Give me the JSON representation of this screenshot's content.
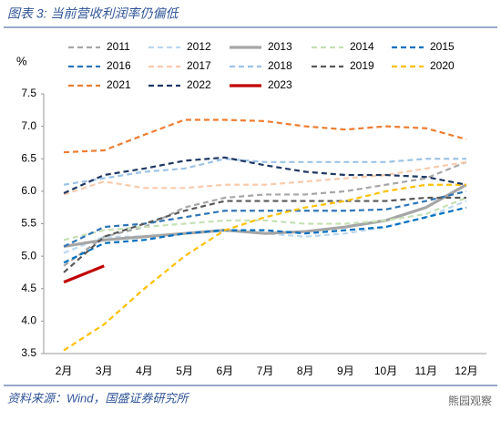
{
  "chart_data": {
    "type": "line",
    "title": "图表 3:  当前营收利润率仍偏低",
    "source": "资料来源：Wind，国盛证券研究所",
    "watermark": "熊园观察",
    "y_label": "%",
    "categories": [
      "2月",
      "3月",
      "4月",
      "5月",
      "6月",
      "7月",
      "8月",
      "9月",
      "10月",
      "11月",
      "12月"
    ],
    "ylim": [
      3.5,
      7.5
    ],
    "yticks": [
      3.5,
      {
        "value": 4,
        "label": "4.0"
      },
      4.5,
      {
        "value": 5,
        "label": "5.0"
      },
      5.5,
      {
        "value": 6,
        "label": "6.0"
      },
      6.5,
      {
        "value": 7,
        "label": "7.0"
      },
      7.5
    ],
    "series": [
      {
        "name": "2011",
        "color": "#a6a6a6",
        "style": "dashed",
        "values": [
          4.85,
          5.3,
          5.45,
          5.75,
          5.9,
          5.95,
          5.95,
          6.0,
          6.1,
          6.2,
          6.45
        ]
      },
      {
        "name": "2012",
        "color": "#bdd7ee",
        "style": "dashed",
        "values": [
          5.05,
          5.3,
          5.3,
          5.35,
          5.4,
          5.35,
          5.3,
          5.35,
          5.45,
          5.6,
          5.85
        ]
      },
      {
        "name": "2013",
        "color": "#a6a6a6",
        "style": "solid",
        "values": [
          5.15,
          5.25,
          5.3,
          5.35,
          5.4,
          5.35,
          5.38,
          5.45,
          5.55,
          5.75,
          6.1
        ]
      },
      {
        "name": "2014",
        "color": "#c5e0b4",
        "style": "dashed",
        "values": [
          5.25,
          5.4,
          5.45,
          5.5,
          5.55,
          5.55,
          5.5,
          5.5,
          5.55,
          5.65,
          5.9
        ]
      },
      {
        "name": "2015",
        "color": "#0070c0",
        "style": "dashed",
        "values": [
          4.9,
          5.2,
          5.25,
          5.35,
          5.4,
          5.4,
          5.35,
          5.4,
          5.45,
          5.6,
          5.75
        ]
      },
      {
        "name": "2016",
        "color": "#2e75b6",
        "style": "dashed",
        "values": [
          5.15,
          5.45,
          5.5,
          5.6,
          5.7,
          5.7,
          5.7,
          5.7,
          5.72,
          5.85,
          6.0
        ]
      },
      {
        "name": "2017",
        "color": "#f8cbad",
        "style": "dashed",
        "values": [
          5.95,
          6.15,
          6.05,
          6.05,
          6.1,
          6.1,
          6.15,
          6.2,
          6.25,
          6.35,
          6.45
        ]
      },
      {
        "name": "2018",
        "color": "#9dc3e6",
        "style": "dashed",
        "values": [
          6.1,
          6.2,
          6.3,
          6.35,
          6.5,
          6.45,
          6.45,
          6.45,
          6.45,
          6.5,
          6.5
        ]
      },
      {
        "name": "2019",
        "color": "#595959",
        "style": "dashed",
        "values": [
          4.75,
          5.3,
          5.5,
          5.7,
          5.85,
          5.85,
          5.85,
          5.85,
          5.85,
          5.9,
          5.9
        ]
      },
      {
        "name": "2020",
        "color": "#ffc000",
        "style": "dashed",
        "values": [
          3.55,
          3.95,
          4.5,
          5.0,
          5.4,
          5.6,
          5.75,
          5.85,
          6.0,
          6.1,
          6.1
        ]
      },
      {
        "name": "2021",
        "color": "#ed7d31",
        "style": "dashed",
        "values": [
          6.6,
          6.63,
          6.87,
          7.1,
          7.1,
          7.08,
          7.0,
          6.95,
          7.0,
          6.97,
          6.8
        ]
      },
      {
        "name": "2022",
        "color": "#1f3864",
        "style": "dashed",
        "values": [
          5.97,
          6.25,
          6.35,
          6.47,
          6.52,
          6.4,
          6.3,
          6.25,
          6.25,
          6.22,
          6.1
        ]
      },
      {
        "name": "2023",
        "color": "#c00000",
        "style": "solid",
        "values": [
          4.6,
          4.85,
          null,
          null,
          null,
          null,
          null,
          null,
          null,
          null,
          null
        ]
      }
    ]
  }
}
